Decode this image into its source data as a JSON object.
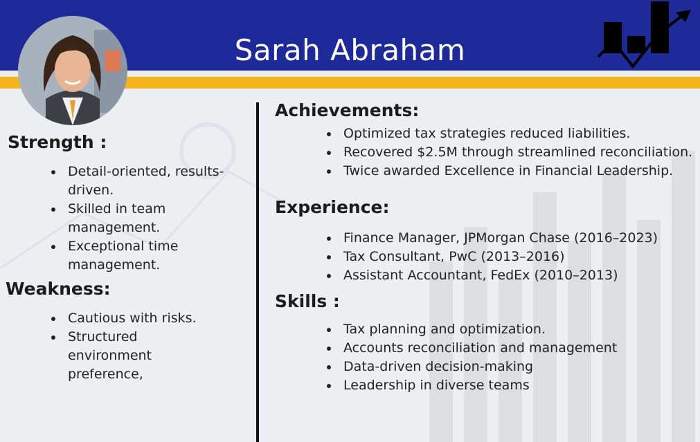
{
  "header": {
    "name": "Sarah Abraham",
    "accent_color": "#1e2a9a",
    "highlight_color": "#f4b41c",
    "logo_icon": "growth-chart-icon"
  },
  "strength": {
    "heading": "Strength :",
    "items": [
      "Detail-oriented, results-driven.",
      "Skilled in team management.",
      "Exceptional time management."
    ]
  },
  "weakness": {
    "heading": "Weakness:",
    "items": [
      "Cautious with risks.",
      "Structured environment preference,"
    ]
  },
  "achievements": {
    "heading": "Achievements:",
    "items": [
      "Optimized tax strategies reduced liabilities.",
      "Recovered $2.5M through streamlined reconciliation.",
      "Twice awarded Excellence in Financial Leadership."
    ]
  },
  "experience": {
    "heading": "Experience:",
    "items": [
      "Finance Manager, JPMorgan Chase (2016–2023)",
      "Tax Consultant, PwC (2013–2016)",
      "Assistant Accountant, FedEx (2010–2013)"
    ]
  },
  "skills": {
    "heading": "Skills :",
    "items": [
      "Tax planning and optimization.",
      "Accounts reconciliation and management",
      "Data-driven decision-making",
      "Leadership in diverse teams"
    ]
  }
}
